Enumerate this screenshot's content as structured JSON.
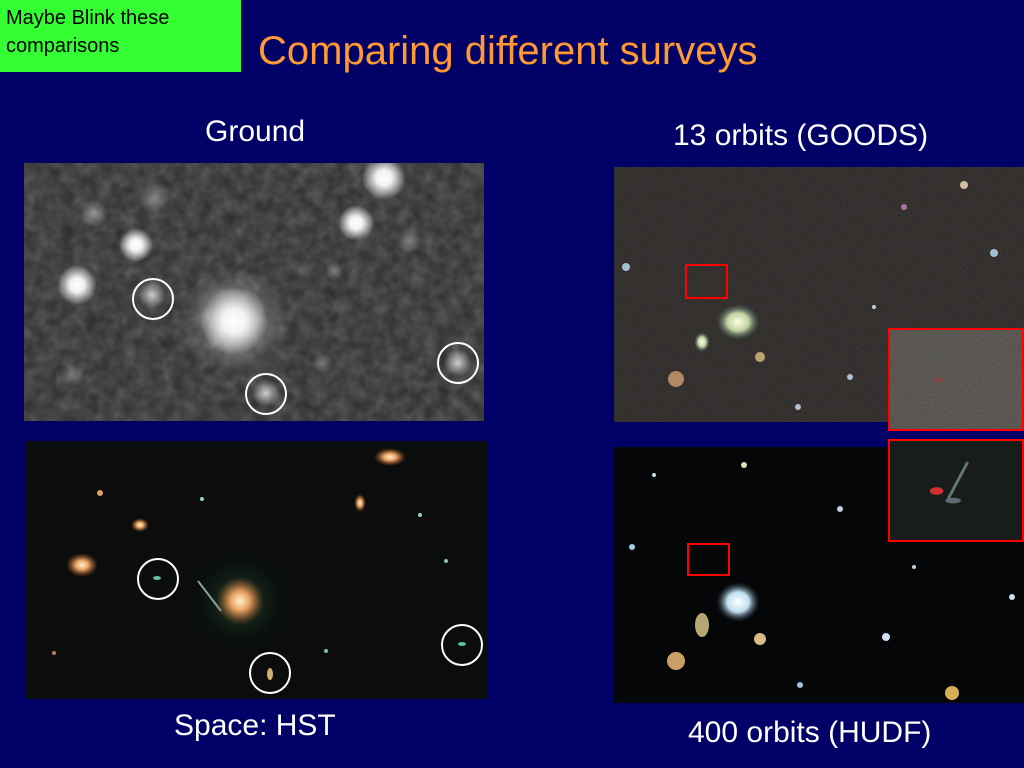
{
  "slide": {
    "title": "Comparing different surveys",
    "note": "Maybe Blink these comparisons",
    "captions": {
      "ground": "Ground",
      "space": "Space: HST",
      "goods": "13 orbits (GOODS)",
      "hudf": "400 orbits (HUDF)"
    }
  },
  "colors": {
    "background": "#000066",
    "title": "#ff9933",
    "note_background": "#33ff33",
    "highlight_circle": "#ffffff",
    "highlight_box": "#ff0000"
  }
}
